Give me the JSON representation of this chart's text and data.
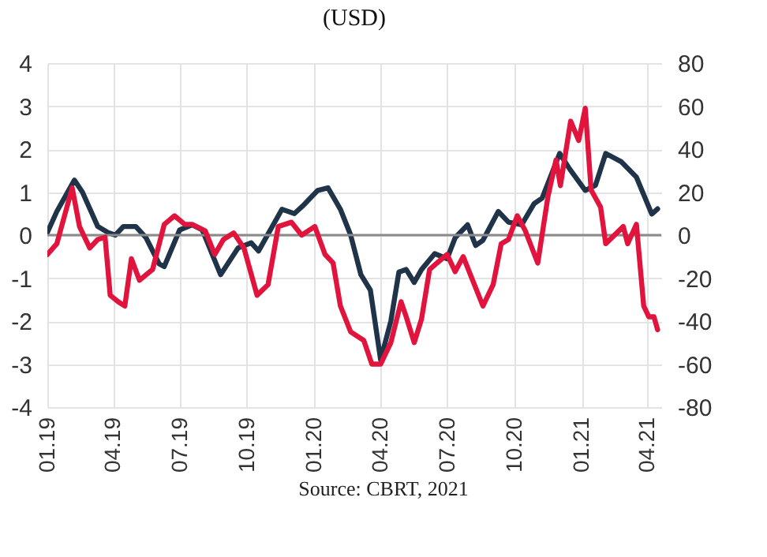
{
  "chart_data": {
    "type": "line",
    "title": "(USD)",
    "annotations": [
      "Source: CBRT, 2021"
    ],
    "xlim": [
      "2019-01-01",
      "2021-04-20"
    ],
    "xticks": [
      {
        "value": "2019-01-01",
        "label": "01.19"
      },
      {
        "value": "2019-04-01",
        "label": "04.19"
      },
      {
        "value": "2019-07-01",
        "label": "07.19"
      },
      {
        "value": "2019-10-01",
        "label": "10.19"
      },
      {
        "value": "2020-01-01",
        "label": "01.20"
      },
      {
        "value": "2020-04-01",
        "label": "04.20"
      },
      {
        "value": "2020-07-01",
        "label": "07.20"
      },
      {
        "value": "2020-10-01",
        "label": "10.20"
      },
      {
        "value": "2021-01-01",
        "label": "01.21"
      },
      {
        "value": "2021-04-01",
        "label": "04.21"
      }
    ],
    "ylim": [
      -4,
      4
    ],
    "yticks": [
      -4,
      -3,
      -2,
      -1,
      0,
      1,
      2,
      3,
      4
    ],
    "y2lim": [
      -80,
      80
    ],
    "y2ticks": [
      -80,
      -60,
      -40,
      -20,
      0,
      20,
      40,
      60,
      80
    ],
    "grid": true,
    "marker": "none",
    "line_style": "solid",
    "ref_lines": [
      {
        "axis": "y",
        "value": 0,
        "color": "#8a8a8a"
      }
    ],
    "series": [
      {
        "color": "#1f3349",
        "x": [
          "2019-01-01",
          "2019-01-14",
          "2019-02-07",
          "2019-02-18",
          "2019-03-11",
          "2019-03-25",
          "2019-04-04",
          "2019-04-15",
          "2019-05-02",
          "2019-05-16",
          "2019-06-03",
          "2019-06-10",
          "2019-07-01",
          "2019-07-18",
          "2019-08-01",
          "2019-08-26",
          "2019-09-19",
          "2019-10-07",
          "2019-10-17",
          "2019-11-18",
          "2019-12-05",
          "2019-12-16",
          "2020-01-06",
          "2020-01-20",
          "2020-02-06",
          "2020-02-20",
          "2020-03-05",
          "2020-03-18",
          "2020-04-01",
          "2020-04-15",
          "2020-04-26",
          "2020-05-06",
          "2020-05-17",
          "2020-05-27",
          "2020-06-14",
          "2020-07-01",
          "2020-07-12",
          "2020-07-29",
          "2020-08-09",
          "2020-08-19",
          "2020-09-09",
          "2020-09-23",
          "2020-10-11",
          "2020-10-28",
          "2020-11-08",
          "2020-12-02",
          "2020-12-16",
          "2021-01-06",
          "2021-01-20",
          "2021-02-03",
          "2021-02-24",
          "2021-03-17",
          "2021-04-07",
          "2021-04-15"
        ],
        "values": [
          0.06,
          0.55,
          1.28,
          1.0,
          0.2,
          0.06,
          0,
          0.2,
          0.2,
          -0.06,
          -0.67,
          -0.73,
          0.12,
          0.24,
          0.12,
          -0.92,
          -0.3,
          -0.18,
          -0.37,
          0.6,
          0.5,
          0.67,
          1.04,
          1.1,
          0.6,
          0,
          -0.92,
          -1.28,
          -2.9,
          -2.0,
          -0.86,
          -0.8,
          -1.1,
          -0.8,
          -0.43,
          -0.55,
          -0.06,
          0.24,
          -0.24,
          -0.12,
          0.55,
          0.3,
          0.24,
          0.73,
          0.86,
          1.9,
          1.53,
          1.04,
          1.16,
          1.9,
          1.71,
          1.35,
          0.49,
          0.61
        ]
      },
      {
        "color": "#e0143c",
        "axis": "y2",
        "x": [
          "2019-01-01",
          "2019-01-14",
          "2019-02-04",
          "2019-02-14",
          "2019-02-28",
          "2019-03-11",
          "2019-03-21",
          "2019-03-28",
          "2019-04-08",
          "2019-04-17",
          "2019-04-26",
          "2019-05-07",
          "2019-05-25",
          "2019-06-10",
          "2019-06-24",
          "2019-07-08",
          "2019-07-18",
          "2019-08-05",
          "2019-08-18",
          "2019-08-30",
          "2019-09-13",
          "2019-09-27",
          "2019-10-15",
          "2019-10-30",
          "2019-11-13",
          "2019-12-01",
          "2019-12-15",
          "2020-01-02",
          "2020-01-16",
          "2020-01-27",
          "2020-02-06",
          "2020-02-20",
          "2020-03-09",
          "2020-03-20",
          "2020-04-01",
          "2020-04-15",
          "2020-04-29",
          "2020-05-06",
          "2020-05-17",
          "2020-05-27",
          "2020-06-07",
          "2020-06-17",
          "2020-07-01",
          "2020-07-12",
          "2020-07-23",
          "2020-08-19",
          "2020-09-02",
          "2020-09-13",
          "2020-09-23",
          "2020-10-05",
          "2020-10-16",
          "2020-11-02",
          "2020-11-16",
          "2020-11-27",
          "2020-12-03",
          "2020-12-17",
          "2020-12-28",
          "2021-01-06",
          "2021-01-14",
          "2021-01-27",
          "2021-02-03",
          "2021-02-27",
          "2021-03-05",
          "2021-03-17",
          "2021-03-27",
          "2021-04-03",
          "2021-04-10",
          "2021-04-15"
        ],
        "values": [
          -9,
          -4,
          22,
          4,
          -6,
          -2,
          -1,
          -28,
          -31,
          -33,
          -11,
          -21,
          -16,
          5,
          9,
          5,
          5,
          2,
          -9,
          -2,
          1,
          -6,
          -28,
          -23,
          4,
          6,
          0,
          4,
          -9,
          -13,
          -33,
          -45,
          -49,
          -60,
          -60,
          -50,
          -31,
          -38,
          -50,
          -39,
          -16,
          -13,
          -9,
          -17,
          -10,
          -33,
          -23,
          -4,
          -2,
          9,
          2,
          -13,
          18,
          35,
          23,
          53,
          44,
          59,
          21,
          13,
          -4,
          4,
          -4,
          5,
          -33,
          -38,
          -38,
          -44
        ]
      }
    ]
  }
}
